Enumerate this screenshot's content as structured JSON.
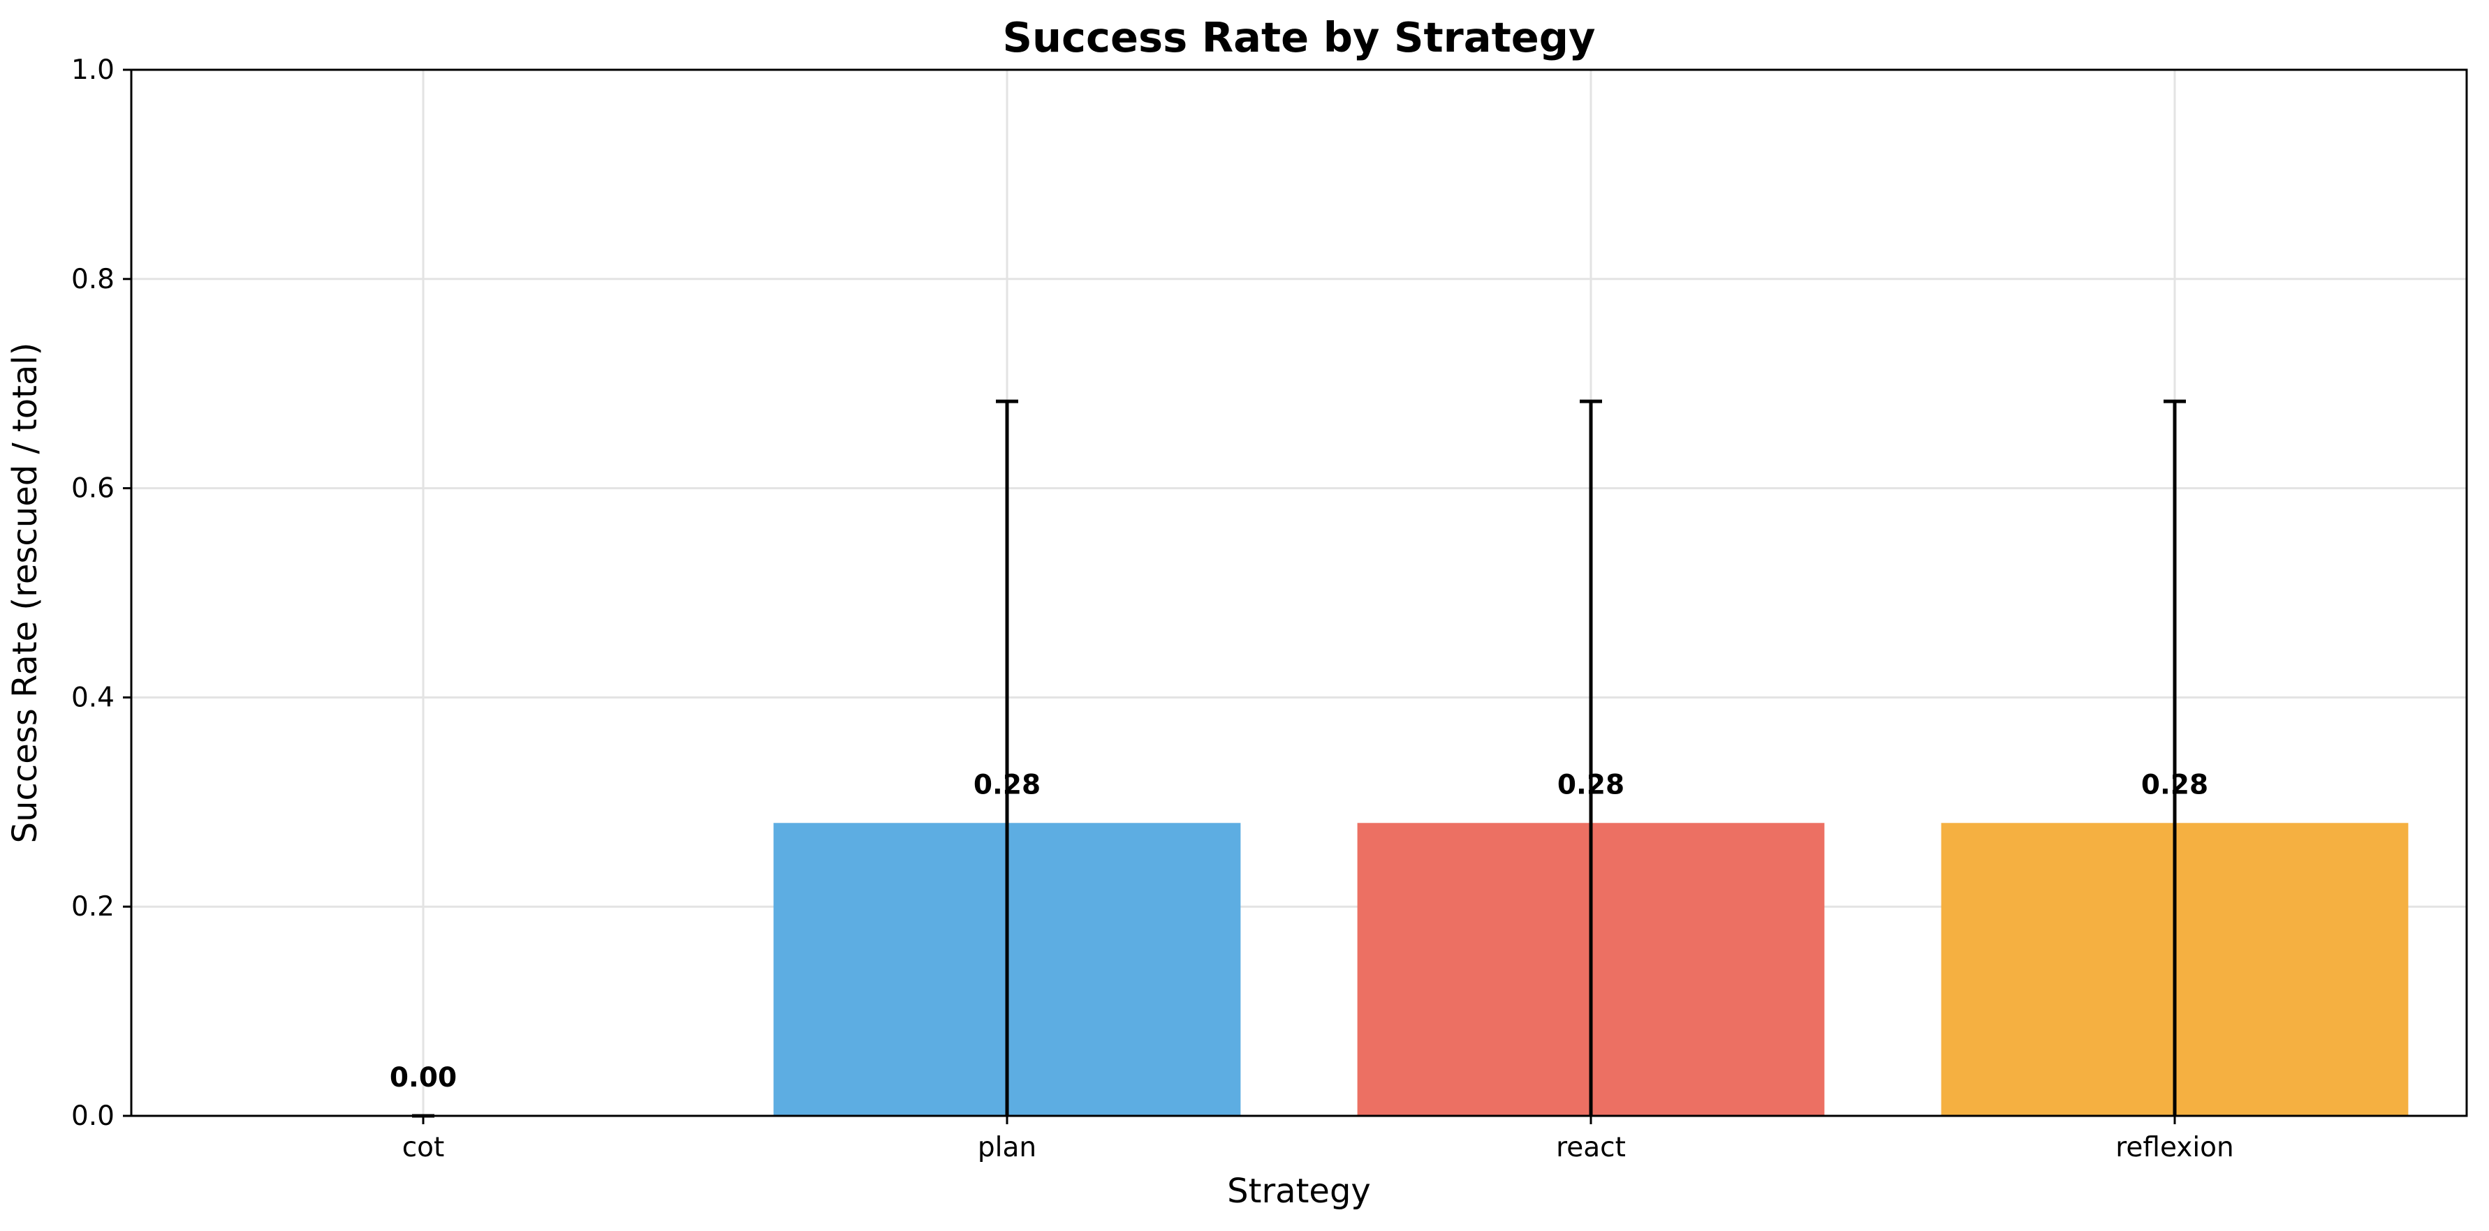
{
  "chart_data": {
    "type": "bar",
    "title": "Success Rate by Strategy",
    "xlabel": "Strategy",
    "ylabel": "Success Rate (rescued / total)",
    "categories": [
      "cot",
      "plan",
      "react",
      "reflexion"
    ],
    "values": [
      0.0,
      0.28,
      0.28,
      0.28
    ],
    "value_labels": [
      "0.00",
      "0.28",
      "0.28",
      "0.28"
    ],
    "error_upper": [
      0.0,
      0.683,
      0.683,
      0.683
    ],
    "colors": [
      "#5dade2",
      "#5dade2",
      "#ec7063",
      "#f5b041"
    ],
    "ylim": [
      0,
      1.0
    ],
    "yticks": [
      0.0,
      0.2,
      0.4,
      0.6,
      0.8,
      1.0
    ],
    "ytick_labels": [
      "0.0",
      "0.2",
      "0.4",
      "0.6",
      "0.8",
      "1.0"
    ],
    "grid": true,
    "legend": false
  }
}
